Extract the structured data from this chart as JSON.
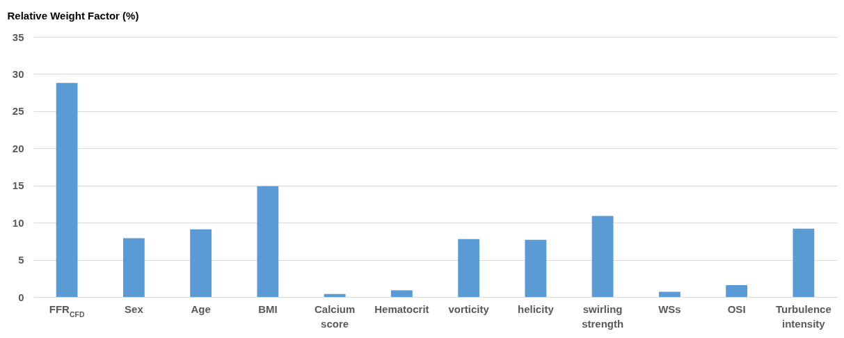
{
  "chart_data": {
    "type": "bar",
    "ylabel": "Relative Weight Factor (%)",
    "categories": [
      "FFR$_{CFD}$",
      "Sex",
      "Age",
      "BMI",
      "Calcium score",
      "Hematocrit",
      "vorticity",
      "helicity",
      "swirling strength",
      "WSs",
      "OSI",
      "Turbulence intensity"
    ],
    "values": [
      28.8,
      7.9,
      9.1,
      14.9,
      0.4,
      0.9,
      7.8,
      7.7,
      10.9,
      0.7,
      1.6,
      9.2
    ],
    "color": "#5b9bd5",
    "ylim": [
      0,
      35
    ],
    "yticks": [
      0,
      5,
      10,
      15,
      20,
      25,
      30,
      35
    ],
    "grid": true
  }
}
